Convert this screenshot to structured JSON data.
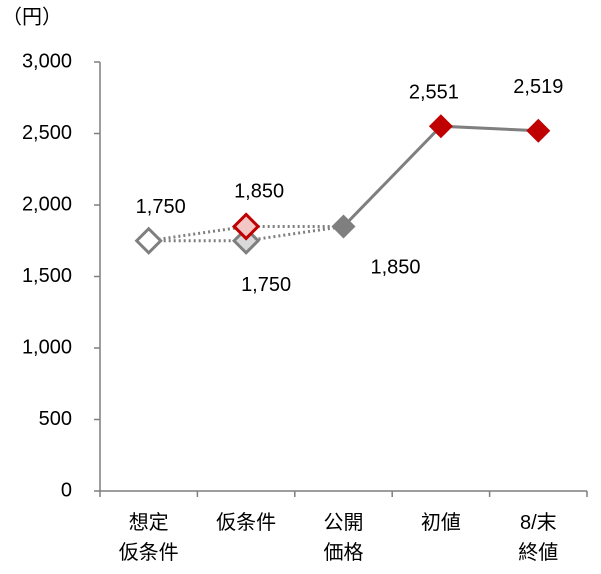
{
  "chart_data": {
    "type": "line",
    "y_unit": "（円）",
    "categories": [
      [
        "想定",
        "仮条件"
      ],
      [
        "仮条件"
      ],
      [
        "公開",
        "価格"
      ],
      [
        "初値"
      ],
      [
        "8/末",
        "終値"
      ]
    ],
    "ylim": [
      0,
      3000
    ],
    "yticks": [
      0,
      500,
      {
        "value": 1000,
        "label": "1,000"
      },
      {
        "value": 1500,
        "label": "1,500"
      },
      {
        "value": 2000,
        "label": "2,000"
      },
      {
        "value": 2500,
        "label": "2,500"
      },
      {
        "value": 3000,
        "label": "3,000"
      }
    ],
    "axis_color": "#7f7f7f",
    "series": [
      {
        "color": "#7f7f7f",
        "line_style": "dotted",
        "values": [
          1750,
          1750,
          1850,
          null,
          null
        ],
        "value_labels": [
          "1,750",
          "1,750",
          null,
          null,
          null
        ],
        "marker_fills": [
          "#ffffff",
          "#d9d9d9",
          null,
          null,
          null
        ],
        "marker_stroke": "#7f7f7f"
      },
      {
        "color": "#7f7f7f",
        "line_style": "dotted",
        "values": [
          1750,
          1850,
          1850,
          null,
          null
        ],
        "value_labels": [
          null,
          "1,850",
          null,
          null,
          null
        ],
        "marker_fills": [
          null,
          "#f4c7c7",
          null,
          null,
          null
        ],
        "marker_stroke": "#c00000"
      },
      {
        "color": "#7f7f7f",
        "line_style": "solid",
        "values": [
          null,
          null,
          1850,
          2551,
          2519
        ],
        "value_labels": [
          null,
          null,
          "1,850",
          "2,551",
          "2,519"
        ],
        "marker_fills": [
          null,
          null,
          "#7f7f7f",
          "#c00000",
          "#c00000"
        ],
        "marker_stroke": null
      }
    ]
  }
}
